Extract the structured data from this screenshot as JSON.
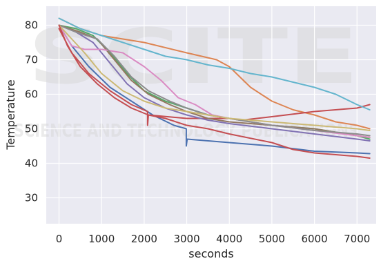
{
  "chart_data": {
    "type": "line",
    "xlabel": "seconds",
    "ylabel": "Temperature",
    "xlim": [
      -300,
      7450
    ],
    "ylim": [
      22.5,
      85.5
    ],
    "xticks": [
      0,
      1000,
      2000,
      3000,
      4000,
      5000,
      6000,
      7000
    ],
    "yticks": [
      30,
      40,
      50,
      60,
      70,
      80
    ],
    "grid": true,
    "background": "#eaeaf2",
    "watermark": [
      "SCITE",
      "SCIENCE AND TECHNOLOGY PUBLICATIONS"
    ],
    "series": [
      {
        "color": "#4c72b0",
        "points": [
          [
            0,
            80
          ],
          [
            300,
            74
          ],
          [
            700,
            68
          ],
          [
            1200,
            62
          ],
          [
            1700,
            58
          ],
          [
            2200,
            54
          ],
          [
            2700,
            51
          ],
          [
            2990,
            50
          ],
          [
            2990,
            45
          ],
          [
            3010,
            47
          ],
          [
            4000,
            46
          ],
          [
            5000,
            45
          ],
          [
            6000,
            43.5
          ],
          [
            7000,
            43
          ],
          [
            7300,
            42.8
          ]
        ]
      },
      {
        "color": "#dd8452",
        "points": [
          [
            0,
            82
          ],
          [
            500,
            79
          ],
          [
            1000,
            77
          ],
          [
            2000,
            75
          ],
          [
            3000,
            72
          ],
          [
            3700,
            70
          ],
          [
            4000,
            68
          ],
          [
            4500,
            62
          ],
          [
            5000,
            58
          ],
          [
            5500,
            55.5
          ],
          [
            6000,
            54
          ],
          [
            6500,
            52
          ],
          [
            7000,
            51
          ],
          [
            7300,
            50
          ]
        ]
      },
      {
        "color": "#55a868",
        "points": [
          [
            0,
            80
          ],
          [
            400,
            79
          ],
          [
            800,
            77
          ],
          [
            1200,
            72
          ],
          [
            1600,
            66
          ],
          [
            2000,
            61
          ],
          [
            2500,
            58
          ],
          [
            3000,
            56
          ],
          [
            3500,
            54
          ],
          [
            4000,
            53
          ],
          [
            5000,
            51
          ],
          [
            6000,
            50
          ],
          [
            7000,
            48
          ],
          [
            7300,
            47
          ]
        ]
      },
      {
        "color": "#c44e52",
        "points": [
          [
            0,
            79
          ],
          [
            300,
            72
          ],
          [
            700,
            66
          ],
          [
            1200,
            61
          ],
          [
            1700,
            57
          ],
          [
            2080,
            55
          ],
          [
            2080,
            51
          ],
          [
            2100,
            54
          ],
          [
            3000,
            53
          ],
          [
            4000,
            53
          ],
          [
            4300,
            52.5
          ],
          [
            5000,
            53.5
          ],
          [
            6000,
            55
          ],
          [
            7000,
            56
          ],
          [
            7300,
            57
          ]
        ]
      },
      {
        "color": "#8172b3",
        "points": [
          [
            0,
            80
          ],
          [
            400,
            78
          ],
          [
            800,
            75
          ],
          [
            1200,
            69
          ],
          [
            1600,
            63
          ],
          [
            2000,
            59
          ],
          [
            2500,
            56
          ],
          [
            3000,
            54
          ],
          [
            3500,
            52.5
          ],
          [
            4000,
            51.5
          ],
          [
            5000,
            50
          ],
          [
            6000,
            48.5
          ],
          [
            7000,
            47
          ],
          [
            7300,
            46.5
          ]
        ]
      },
      {
        "color": "#937860",
        "points": [
          [
            0,
            80
          ],
          [
            500,
            78
          ],
          [
            900,
            76
          ],
          [
            1300,
            70
          ],
          [
            1700,
            64
          ],
          [
            2100,
            60
          ],
          [
            2600,
            57
          ],
          [
            3000,
            55
          ],
          [
            3500,
            53
          ],
          [
            4000,
            52
          ],
          [
            5000,
            51
          ],
          [
            6000,
            50
          ],
          [
            7000,
            48
          ],
          [
            7300,
            47.5
          ]
        ]
      },
      {
        "color": "#da8bc3",
        "points": [
          [
            0,
            80
          ],
          [
            300,
            74
          ],
          [
            600,
            73
          ],
          [
            1000,
            73
          ],
          [
            1500,
            72
          ],
          [
            2000,
            68
          ],
          [
            2400,
            64
          ],
          [
            2800,
            59
          ],
          [
            3200,
            57
          ],
          [
            3600,
            54
          ],
          [
            4000,
            53
          ],
          [
            5000,
            51
          ],
          [
            6000,
            49.5
          ],
          [
            7000,
            48
          ],
          [
            7300,
            47.5
          ]
        ]
      },
      {
        "color": "#8c8c8c",
        "points": [
          [
            0,
            80
          ],
          [
            400,
            78
          ],
          [
            900,
            76
          ],
          [
            1300,
            71
          ],
          [
            1700,
            65
          ],
          [
            2100,
            61
          ],
          [
            2600,
            58
          ],
          [
            3000,
            56
          ],
          [
            3500,
            54
          ],
          [
            4000,
            53
          ],
          [
            5000,
            51
          ],
          [
            6000,
            49.5
          ],
          [
            7000,
            48.5
          ],
          [
            7300,
            48
          ]
        ]
      },
      {
        "color": "#ccb974",
        "points": [
          [
            0,
            80
          ],
          [
            300,
            76
          ],
          [
            600,
            72
          ],
          [
            1000,
            66
          ],
          [
            1500,
            61
          ],
          [
            2000,
            58
          ],
          [
            2500,
            56
          ],
          [
            3000,
            55
          ],
          [
            3500,
            54
          ],
          [
            4000,
            53
          ],
          [
            5000,
            52
          ],
          [
            6000,
            51
          ],
          [
            7000,
            50
          ],
          [
            7300,
            49.5
          ]
        ]
      },
      {
        "color": "#64b5cd",
        "points": [
          [
            0,
            82
          ],
          [
            500,
            79
          ],
          [
            1000,
            77
          ],
          [
            1500,
            75
          ],
          [
            2000,
            73
          ],
          [
            2500,
            71
          ],
          [
            3000,
            70
          ],
          [
            3500,
            68.5
          ],
          [
            4000,
            67.5
          ],
          [
            4500,
            66
          ],
          [
            5000,
            65
          ],
          [
            5500,
            63.5
          ],
          [
            6000,
            62
          ],
          [
            6500,
            60
          ],
          [
            7000,
            57
          ],
          [
            7300,
            55.5
          ]
        ]
      },
      {
        "color": "#c44e52",
        "points": [
          [
            0,
            80
          ],
          [
            200,
            74
          ],
          [
            500,
            68
          ],
          [
            900,
            63
          ],
          [
            1300,
            59
          ],
          [
            1700,
            56
          ],
          [
            2100,
            54
          ],
          [
            2500,
            53
          ],
          [
            3000,
            51
          ],
          [
            3500,
            50
          ],
          [
            4000,
            48.5
          ],
          [
            5000,
            46
          ],
          [
            5500,
            44
          ],
          [
            6000,
            43
          ],
          [
            6500,
            42.5
          ],
          [
            7000,
            42
          ],
          [
            7300,
            41.5
          ]
        ]
      }
    ]
  }
}
